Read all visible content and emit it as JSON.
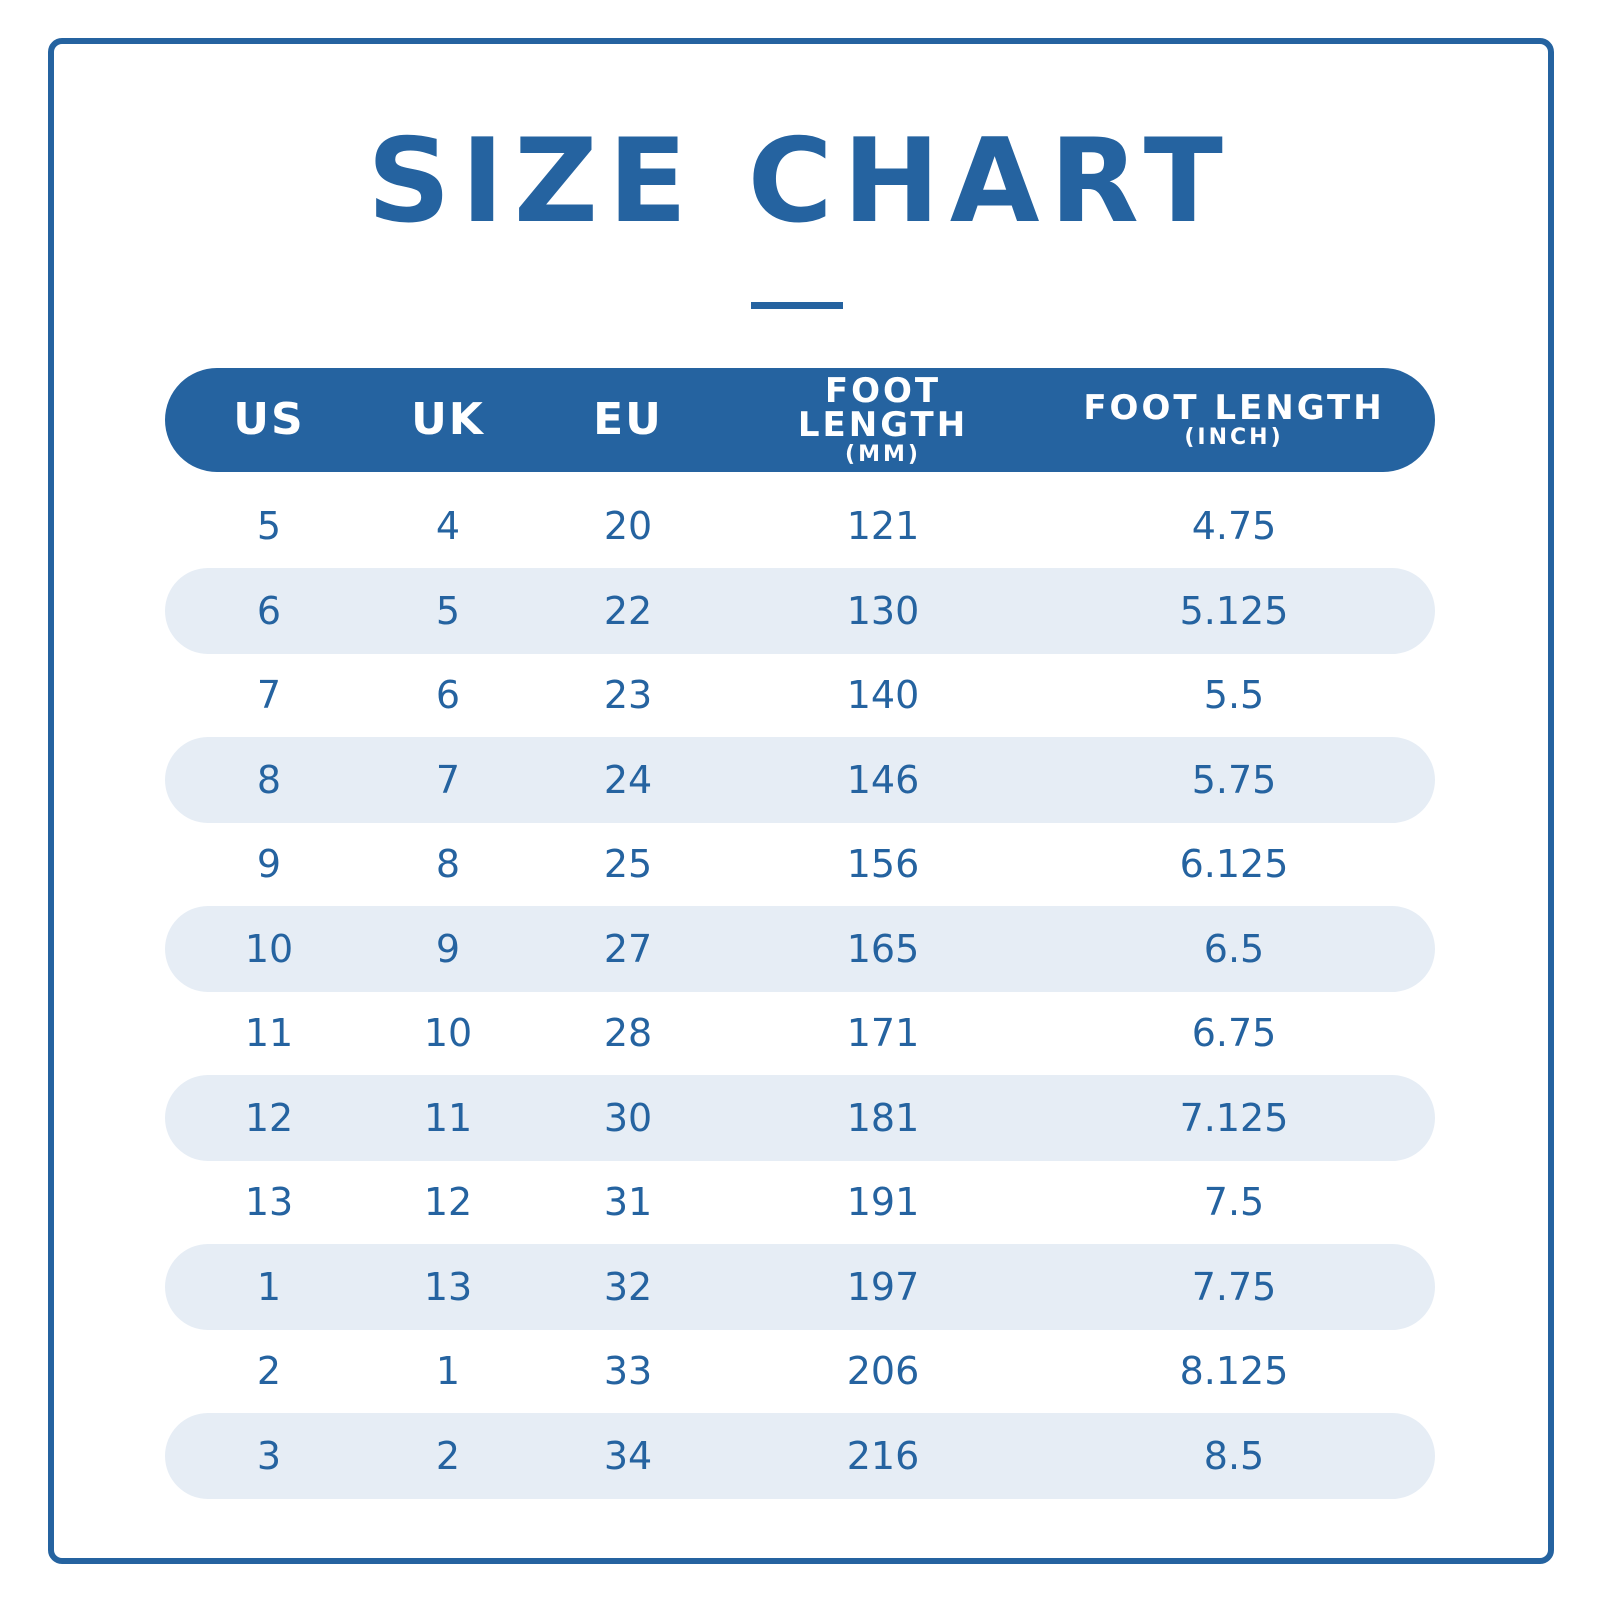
{
  "title": "SIZE CHART",
  "headers": [
    {
      "main": "US",
      "sub": ""
    },
    {
      "main": "UK",
      "sub": ""
    },
    {
      "main": "EU",
      "sub": ""
    },
    {
      "main": "FOOT LENGTH",
      "sub": "(MM)"
    },
    {
      "main": "FOOT LENGTH",
      "sub": "(INCH)"
    }
  ],
  "rows": [
    [
      "5",
      "4",
      "20",
      "121",
      "4.75"
    ],
    [
      "6",
      "5",
      "22",
      "130",
      "5.125"
    ],
    [
      "7",
      "6",
      "23",
      "140",
      "5.5"
    ],
    [
      "8",
      "7",
      "24",
      "146",
      "5.75"
    ],
    [
      "9",
      "8",
      "25",
      "156",
      "6.125"
    ],
    [
      "10",
      "9",
      "27",
      "165",
      "6.5"
    ],
    [
      "11",
      "10",
      "28",
      "171",
      "6.75"
    ],
    [
      "12",
      "11",
      "30",
      "181",
      "7.125"
    ],
    [
      "13",
      "12",
      "31",
      "191",
      "7.5"
    ],
    [
      "1",
      "13",
      "32",
      "197",
      "7.75"
    ],
    [
      "2",
      "1",
      "33",
      "206",
      "8.125"
    ],
    [
      "3",
      "2",
      "34",
      "216",
      "8.5"
    ]
  ],
  "colors": {
    "accent": "#2563a0",
    "band": "#e6edf5",
    "background": "#ffffff"
  }
}
